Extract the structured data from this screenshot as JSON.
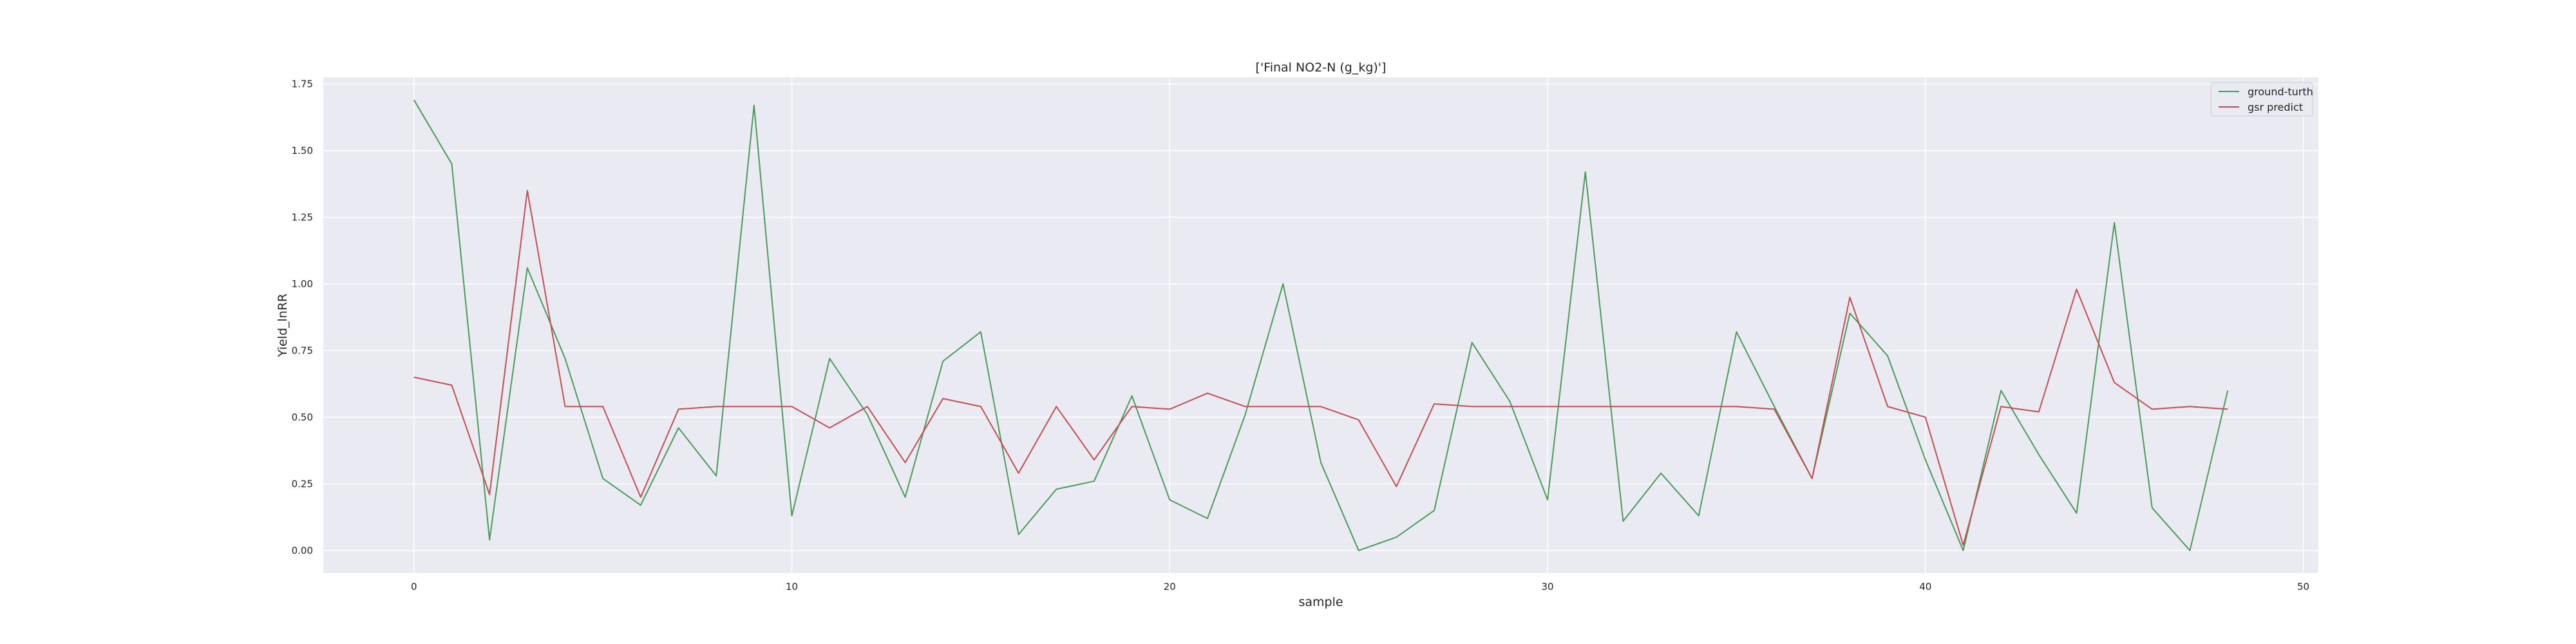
{
  "chart_data": {
    "type": "line",
    "title": "['Final NO2-N (g_kg)']",
    "xlabel": "sample",
    "ylabel": "Yield_lnRR",
    "xlim": [
      -2.4,
      50.4
    ],
    "ylim": [
      -0.085,
      1.775
    ],
    "x_ticks": [
      0,
      10,
      20,
      30,
      40,
      50
    ],
    "y_ticks": [
      0.0,
      0.25,
      0.5,
      0.75,
      1.0,
      1.25,
      1.5,
      1.75
    ],
    "x_tick_labels": [
      "0",
      "10",
      "20",
      "30",
      "40",
      "50"
    ],
    "y_tick_labels": [
      "0.00",
      "0.25",
      "0.50",
      "0.75",
      "1.00",
      "1.25",
      "1.50",
      "1.75"
    ],
    "grid": true,
    "legend_position": "top-right",
    "background": "#eaeaf2",
    "x": [
      0,
      1,
      2,
      3,
      4,
      5,
      6,
      7,
      8,
      9,
      10,
      11,
      12,
      13,
      14,
      15,
      16,
      17,
      18,
      19,
      20,
      21,
      22,
      23,
      24,
      25,
      26,
      27,
      28,
      29,
      30,
      31,
      32,
      33,
      34,
      35,
      36,
      37,
      38,
      39,
      40,
      41,
      42,
      43,
      44,
      45,
      46,
      47,
      48
    ],
    "series": [
      {
        "name": "ground-turth",
        "color": "#4c9a5c",
        "values": [
          1.69,
          1.45,
          0.04,
          1.06,
          0.72,
          0.27,
          0.17,
          0.46,
          0.28,
          1.67,
          0.13,
          0.72,
          0.51,
          0.2,
          0.71,
          0.82,
          0.06,
          0.23,
          0.26,
          0.58,
          0.19,
          0.12,
          0.51,
          1.0,
          0.33,
          0.0,
          0.05,
          0.15,
          0.78,
          0.56,
          0.19,
          1.42,
          0.11,
          0.29,
          0.13,
          0.82,
          0.54,
          0.27,
          0.89,
          0.73,
          0.34,
          0.0,
          0.6,
          0.36,
          0.14,
          1.23,
          0.16,
          0.0,
          0.6
        ]
      },
      {
        "name": "gsr predict",
        "color": "#c44e52",
        "values": [
          0.65,
          0.62,
          0.21,
          1.35,
          0.54,
          0.54,
          0.2,
          0.53,
          0.54,
          0.54,
          0.54,
          0.46,
          0.54,
          0.33,
          0.57,
          0.54,
          0.29,
          0.54,
          0.34,
          0.54,
          0.53,
          0.59,
          0.54,
          0.54,
          0.54,
          0.49,
          0.24,
          0.55,
          0.54,
          0.54,
          0.54,
          0.54,
          0.54,
          0.54,
          0.54,
          0.54,
          0.53,
          0.27,
          0.95,
          0.54,
          0.5,
          0.02,
          0.54,
          0.52,
          0.98,
          0.63,
          0.53,
          0.54,
          0.53
        ]
      }
    ]
  }
}
